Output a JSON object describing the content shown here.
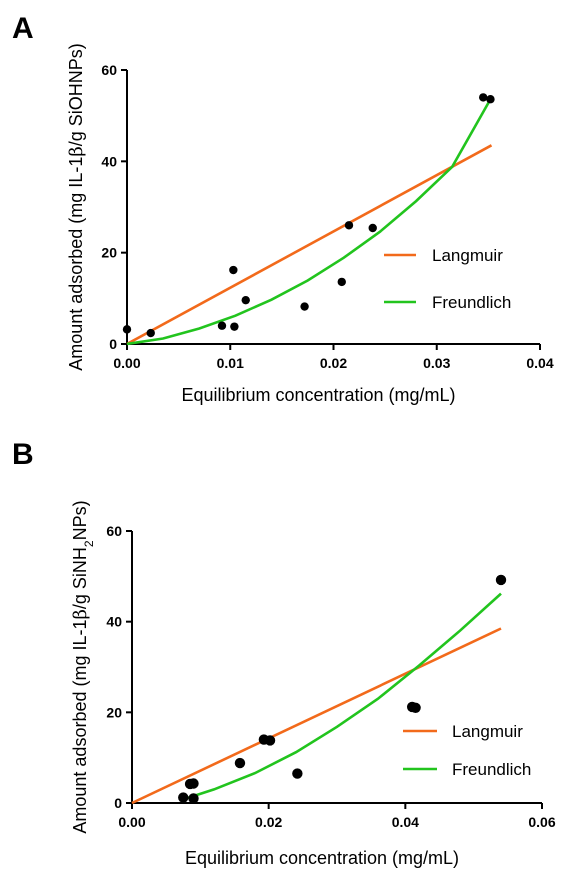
{
  "chart_data": [
    {
      "panel": "A",
      "type": "scatter",
      "xlabel": "Equilibrium concentration (mg/mL)",
      "ylabel_parts": [
        "Amount adsorbed (mg IL-1",
        "β",
        "/g SiOHNPs)"
      ],
      "xlim": [
        0,
        0.04
      ],
      "ylim": [
        0,
        60
      ],
      "xticks": [
        "0.00",
        "0.01",
        "0.02",
        "0.03",
        "0.04"
      ],
      "yticks": [
        "0",
        "20",
        "40",
        "60"
      ],
      "legend_position": "right",
      "points": [
        [
          0.0,
          3.2
        ],
        [
          0.0023,
          2.4
        ],
        [
          0.0092,
          4.0
        ],
        [
          0.0103,
          16.2
        ],
        [
          0.0104,
          3.8
        ],
        [
          0.0115,
          9.6
        ],
        [
          0.0172,
          8.2
        ],
        [
          0.0208,
          13.6
        ],
        [
          0.0215,
          26.0
        ],
        [
          0.0238,
          25.4
        ],
        [
          0.0345,
          54.0
        ],
        [
          0.0352,
          53.6
        ]
      ],
      "series": [
        {
          "name": "Langmuir",
          "color": "#f26a1b",
          "x": [
            0.0,
            0.0353
          ],
          "y": [
            0.0,
            43.5
          ]
        },
        {
          "name": "Freundlich",
          "color": "#22c41e",
          "x": [
            0.0,
            0.0035,
            0.007,
            0.0105,
            0.014,
            0.0175,
            0.021,
            0.0245,
            0.028,
            0.0315,
            0.0353
          ],
          "y": [
            0.0,
            1.2,
            3.4,
            6.2,
            9.7,
            13.9,
            18.9,
            24.6,
            31.3,
            38.8,
            54.0
          ]
        }
      ]
    },
    {
      "panel": "B",
      "type": "scatter",
      "xlabel": "Equilibrium concentration (mg/mL)",
      "ylabel_parts": [
        "Amount adsorbed (mg IL-1",
        "β",
        "/g SiNH",
        "2",
        "NPs)"
      ],
      "xlim": [
        0,
        0.06
      ],
      "ylim": [
        0,
        60
      ],
      "xticks": [
        "0.00",
        "0.02",
        "0.04",
        "0.06"
      ],
      "yticks": [
        "0",
        "20",
        "40",
        "60"
      ],
      "legend_position": "right",
      "points": [
        [
          0.0075,
          1.2
        ],
        [
          0.0085,
          4.2
        ],
        [
          0.009,
          4.3
        ],
        [
          0.009,
          1.0
        ],
        [
          0.0158,
          8.8
        ],
        [
          0.0193,
          14.0
        ],
        [
          0.0202,
          13.8
        ],
        [
          0.0242,
          6.5
        ],
        [
          0.041,
          21.2
        ],
        [
          0.0415,
          21.0
        ],
        [
          0.054,
          49.2
        ]
      ],
      "series": [
        {
          "name": "Langmuir",
          "color": "#f26a1b",
          "x": [
            0.0,
            0.054
          ],
          "y": [
            0.0,
            38.5
          ]
        },
        {
          "name": "Freundlich",
          "color": "#22c41e",
          "x": [
            0.0075,
            0.012,
            0.018,
            0.024,
            0.03,
            0.036,
            0.042,
            0.048,
            0.054
          ],
          "y": [
            0.8,
            3.0,
            6.6,
            11.2,
            16.8,
            23.0,
            30.3,
            38.0,
            46.2
          ]
        }
      ]
    }
  ]
}
